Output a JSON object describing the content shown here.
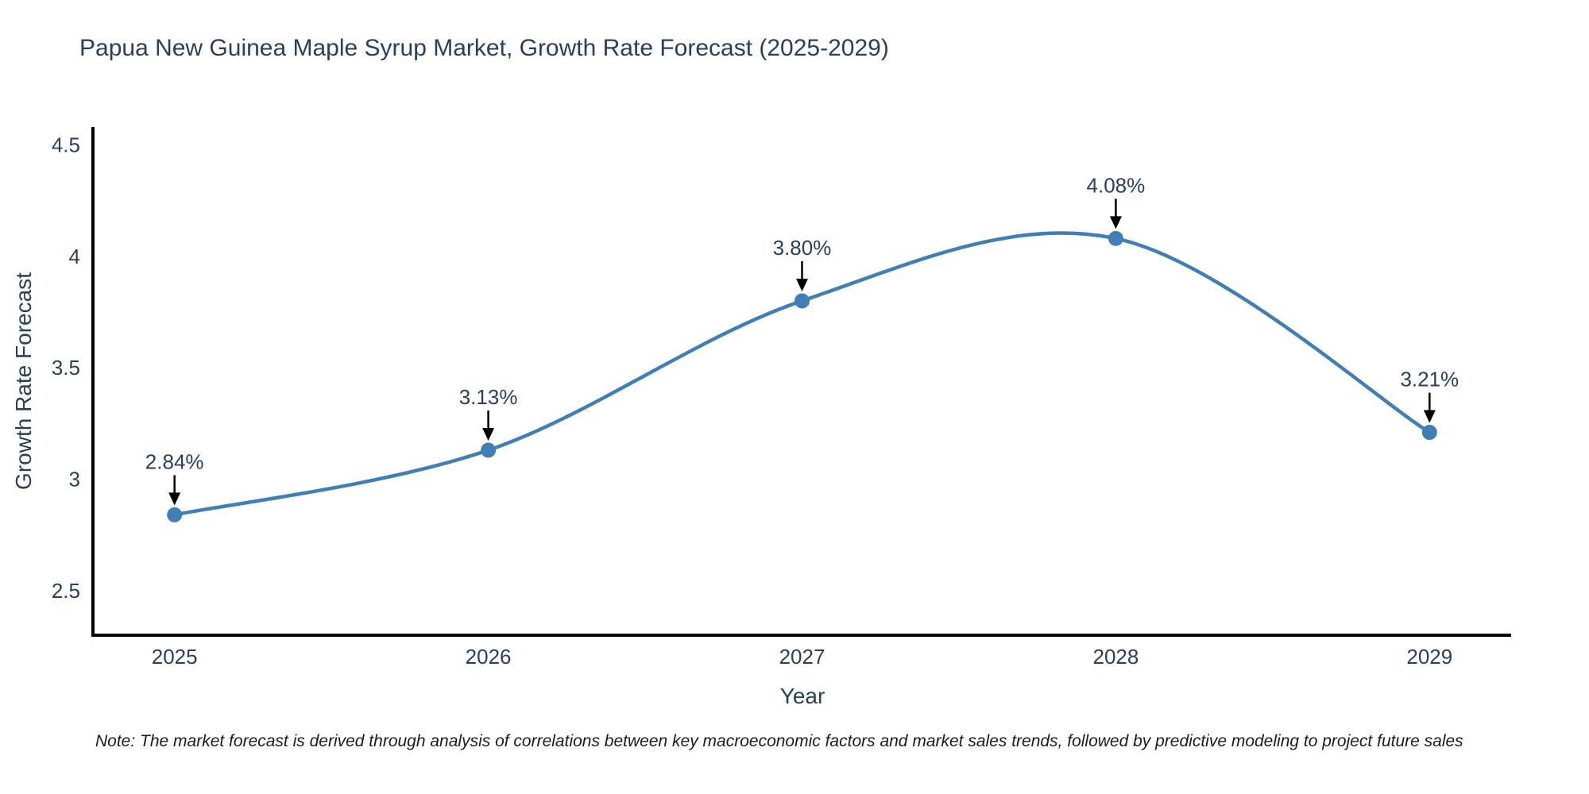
{
  "chart_data": {
    "type": "line",
    "title": "Papua New Guinea Maple Syrup Market, Growth Rate Forecast (2025-2029)",
    "xlabel": "Year",
    "ylabel": "Growth Rate Forecast",
    "x": [
      2025,
      2026,
      2027,
      2028,
      2029
    ],
    "y": [
      2.84,
      3.13,
      3.8,
      4.08,
      3.21
    ],
    "point_labels": [
      "2.84%",
      "3.13%",
      "3.80%",
      "4.08%",
      "3.21%"
    ],
    "x_ticks": {
      "values": [
        2025,
        2026,
        2027,
        2028,
        2029
      ],
      "labels": [
        "2025",
        "2026",
        "2027",
        "2028",
        "2029"
      ]
    },
    "y_ticks": {
      "values": [
        2.5,
        3,
        3.5,
        4,
        4.5
      ],
      "labels": [
        "2.5",
        "3",
        "3.5",
        "4",
        "4.5"
      ]
    },
    "xlim": [
      2024.74,
      2029.26
    ],
    "ylim": [
      2.3,
      4.58
    ],
    "grid": false,
    "legend": false,
    "line_shape": "spline",
    "colors": {
      "line": "#3f7fb5",
      "marker": "#3f7fb5",
      "axis": "#000000",
      "text": "#2a3f5f",
      "annotation_arrow": "#000000",
      "background": "#ffffff"
    }
  },
  "note": "Note: The market forecast is derived through analysis of correlations between key macroeconomic factors and market sales trends, followed by predictive modeling to project future sales"
}
